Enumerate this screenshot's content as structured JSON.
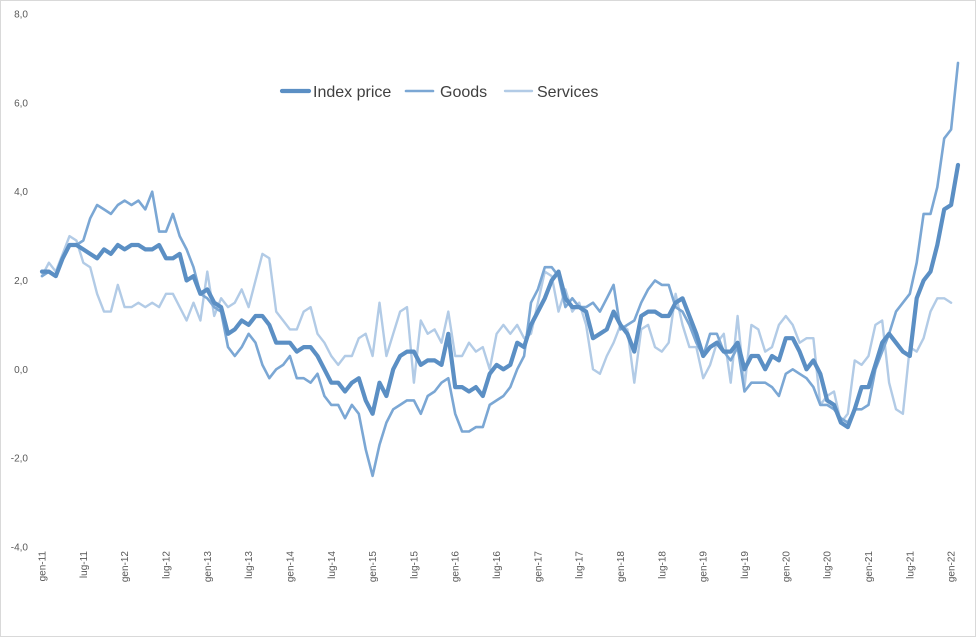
{
  "chart_data": {
    "type": "line",
    "title": "",
    "xlabel": "",
    "ylabel": "",
    "ylim": [
      -4,
      8
    ],
    "yticks": [
      "8,0",
      "6,0",
      "4,0",
      "2,0",
      "0,0",
      "-2,0",
      "-4,0"
    ],
    "ytick_values": [
      8,
      6,
      4,
      2,
      0,
      -2,
      -4
    ],
    "xticks": [
      "gen-11",
      "lug-11",
      "gen-12",
      "lug-12",
      "gen-13",
      "lug-13",
      "gen-14",
      "lug-14",
      "gen-15",
      "lug-15",
      "gen-16",
      "lug-16",
      "gen-17",
      "lug-17",
      "gen-18",
      "lug-18",
      "gen-19",
      "lug-19",
      "gen-20",
      "lug-20",
      "gen-21",
      "lug-21",
      "gen-22"
    ],
    "x_period": "monthly, gen-11 to gen-22",
    "legend_position": "top-center",
    "grid": false,
    "series": [
      {
        "name": "Index price",
        "color": "#5b8fc4",
        "values": [
          2.2,
          2.2,
          2.1,
          2.5,
          2.8,
          2.8,
          2.7,
          2.6,
          2.5,
          2.7,
          2.6,
          2.8,
          2.7,
          2.8,
          2.8,
          2.7,
          2.7,
          2.8,
          2.5,
          2.5,
          2.6,
          2.0,
          2.1,
          1.7,
          1.8,
          1.5,
          1.4,
          0.8,
          0.9,
          1.1,
          1.0,
          1.2,
          1.2,
          1.0,
          0.6,
          0.6,
          0.6,
          0.4,
          0.5,
          0.5,
          0.3,
          0.0,
          -0.3,
          -0.3,
          -0.5,
          -0.3,
          -0.2,
          -0.7,
          -1.0,
          -0.3,
          -0.6,
          0.0,
          0.3,
          0.4,
          0.4,
          0.1,
          0.2,
          0.2,
          0.1,
          0.8,
          -0.4,
          -0.4,
          -0.5,
          -0.4,
          -0.6,
          -0.1,
          0.1,
          0.0,
          0.1,
          0.6,
          0.5,
          1.0,
          1.3,
          1.6,
          2.0,
          2.2,
          1.6,
          1.4,
          1.4,
          1.3,
          0.7,
          0.8,
          0.9,
          1.3,
          1.0,
          0.8,
          0.4,
          1.2,
          1.3,
          1.3,
          1.2,
          1.2,
          1.5,
          1.6,
          1.2,
          0.8,
          0.3,
          0.5,
          0.6,
          0.4,
          0.4,
          0.6,
          0.0,
          0.3,
          0.3,
          0.0,
          0.3,
          0.2,
          0.7,
          0.7,
          0.4,
          0.0,
          0.2,
          -0.1,
          -0.7,
          -0.8,
          -1.2,
          -1.3,
          -0.9,
          -0.4,
          -0.4,
          0.1,
          0.6,
          0.8,
          0.6,
          0.4,
          0.3,
          1.6,
          2.0,
          2.2,
          2.8,
          3.6,
          3.7,
          4.6
        ]
      },
      {
        "name": "Goods",
        "color": "#7ba7d4",
        "values": [
          2.1,
          2.2,
          2.1,
          2.5,
          2.8,
          2.8,
          2.9,
          3.4,
          3.7,
          3.6,
          3.5,
          3.7,
          3.8,
          3.7,
          3.8,
          3.6,
          4.0,
          3.1,
          3.1,
          3.5,
          3.0,
          2.7,
          2.3,
          1.7,
          1.6,
          1.4,
          1.3,
          0.5,
          0.3,
          0.5,
          0.8,
          0.6,
          0.1,
          -0.2,
          0.0,
          0.1,
          0.3,
          -0.2,
          -0.2,
          -0.3,
          -0.1,
          -0.6,
          -0.8,
          -0.8,
          -1.1,
          -0.8,
          -1.0,
          -1.8,
          -2.4,
          -1.7,
          -1.2,
          -0.9,
          -0.8,
          -0.7,
          -0.7,
          -1.0,
          -0.6,
          -0.5,
          -0.3,
          -0.2,
          -1.0,
          -1.4,
          -1.4,
          -1.3,
          -1.3,
          -0.8,
          -0.7,
          -0.6,
          -0.4,
          0.0,
          0.3,
          1.5,
          1.8,
          2.3,
          2.3,
          2.1,
          1.4,
          1.6,
          1.4,
          1.4,
          1.5,
          1.3,
          1.6,
          1.9,
          0.9,
          1.0,
          1.1,
          1.5,
          1.8,
          2.0,
          1.9,
          1.9,
          1.4,
          1.3,
          1.0,
          0.6,
          0.3,
          0.8,
          0.8,
          0.4,
          0.2,
          0.5,
          -0.5,
          -0.3,
          -0.3,
          -0.3,
          -0.4,
          -0.6,
          -0.1,
          0.0,
          -0.1,
          -0.2,
          -0.4,
          -0.8,
          -0.8,
          -0.9,
          -1.1,
          -1.2,
          -0.9,
          -0.9,
          -0.8,
          0.0,
          0.4,
          0.8,
          1.3,
          1.5,
          1.7,
          2.4,
          3.5,
          3.5,
          4.1,
          5.2,
          5.4,
          6.9
        ]
      },
      {
        "name": "Services",
        "color": "#b2cbe6",
        "values": [
          2.1,
          2.4,
          2.2,
          2.6,
          3.0,
          2.9,
          2.4,
          2.3,
          1.7,
          1.3,
          1.3,
          1.9,
          1.4,
          1.4,
          1.5,
          1.4,
          1.5,
          1.4,
          1.7,
          1.7,
          1.4,
          1.1,
          1.5,
          1.1,
          2.2,
          1.2,
          1.6,
          1.4,
          1.5,
          1.8,
          1.4,
          2.0,
          2.6,
          2.5,
          1.3,
          1.1,
          0.9,
          0.9,
          1.3,
          1.4,
          0.8,
          0.6,
          0.3,
          0.1,
          0.3,
          0.3,
          0.7,
          0.8,
          0.3,
          1.5,
          0.3,
          0.8,
          1.3,
          1.4,
          -0.3,
          1.1,
          0.8,
          0.9,
          0.6,
          1.3,
          0.3,
          0.3,
          0.6,
          0.4,
          0.5,
          0.0,
          0.8,
          1.0,
          0.8,
          1.0,
          0.7,
          0.8,
          1.5,
          2.2,
          2.1,
          1.3,
          1.8,
          1.3,
          1.5,
          1.0,
          0.0,
          -0.1,
          0.3,
          0.6,
          1.0,
          0.9,
          -0.3,
          0.9,
          1.0,
          0.5,
          0.4,
          0.6,
          1.7,
          1.0,
          0.5,
          0.5,
          -0.2,
          0.1,
          0.6,
          0.8,
          -0.3,
          1.2,
          -0.4,
          1.0,
          0.9,
          0.4,
          0.5,
          1.0,
          1.2,
          1.0,
          0.6,
          0.7,
          0.7,
          -0.8,
          -0.6,
          -0.5,
          -1.2,
          -1.0,
          0.2,
          0.1,
          0.3,
          1.0,
          1.1,
          -0.3,
          -0.9,
          -1.0,
          0.5,
          0.4,
          0.7,
          1.3,
          1.6,
          1.6,
          1.5
        ]
      }
    ]
  }
}
